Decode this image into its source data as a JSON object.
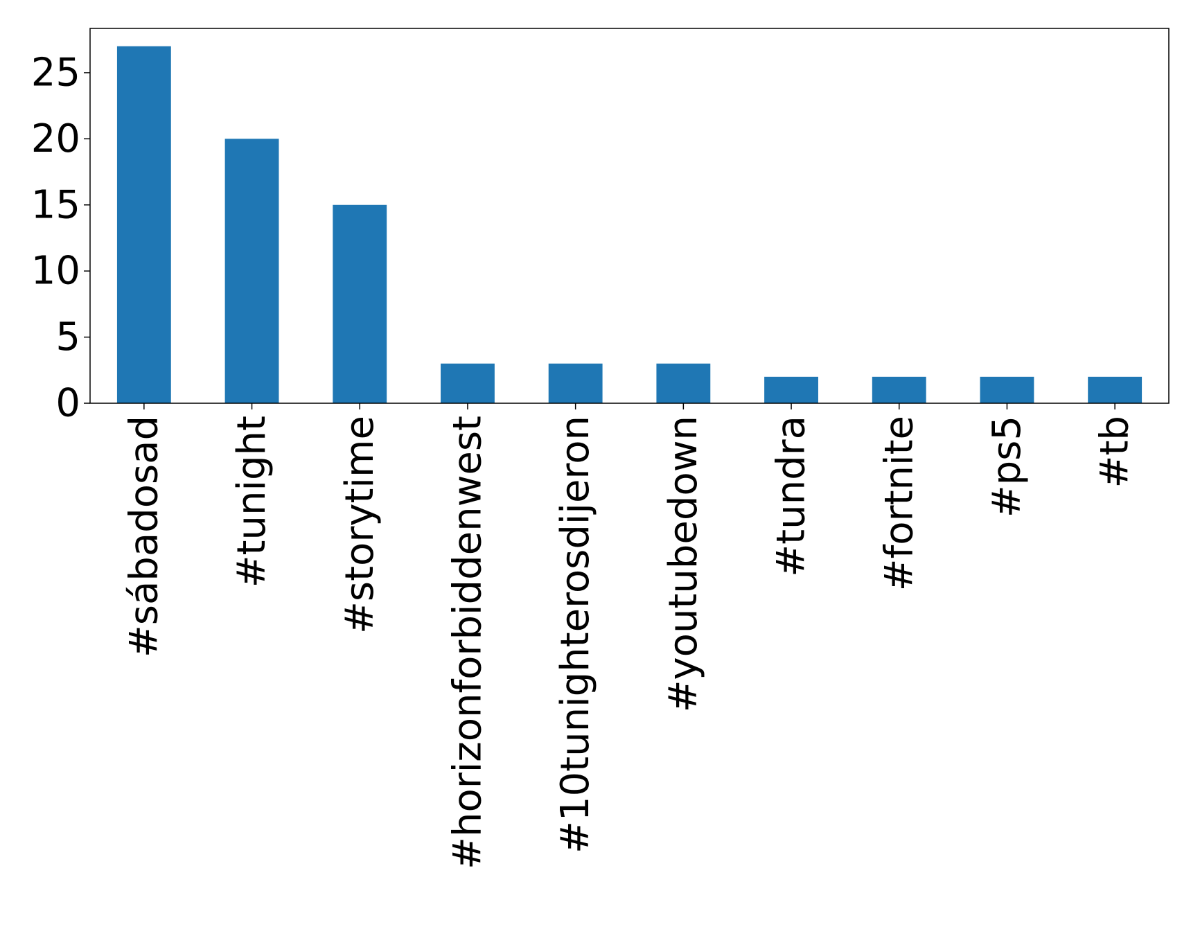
{
  "chart_data": {
    "type": "bar",
    "title": "",
    "xlabel": "",
    "ylabel": "",
    "categories": [
      "#sábadosad",
      "#tunight",
      "#storytime",
      "#horizonforbiddenwest",
      "#10tunighterosdijeron",
      "#youtubedown",
      "#tundra",
      "#fortnite",
      "#ps5",
      "#tb"
    ],
    "values": [
      27,
      20,
      15,
      3,
      3,
      3,
      2,
      2,
      2,
      2
    ],
    "ylim": [
      0,
      28.35
    ],
    "yticks": [
      0,
      5,
      10,
      15,
      20,
      25
    ],
    "grid": false,
    "legend": "none",
    "bar_color": "#1f77b4"
  }
}
